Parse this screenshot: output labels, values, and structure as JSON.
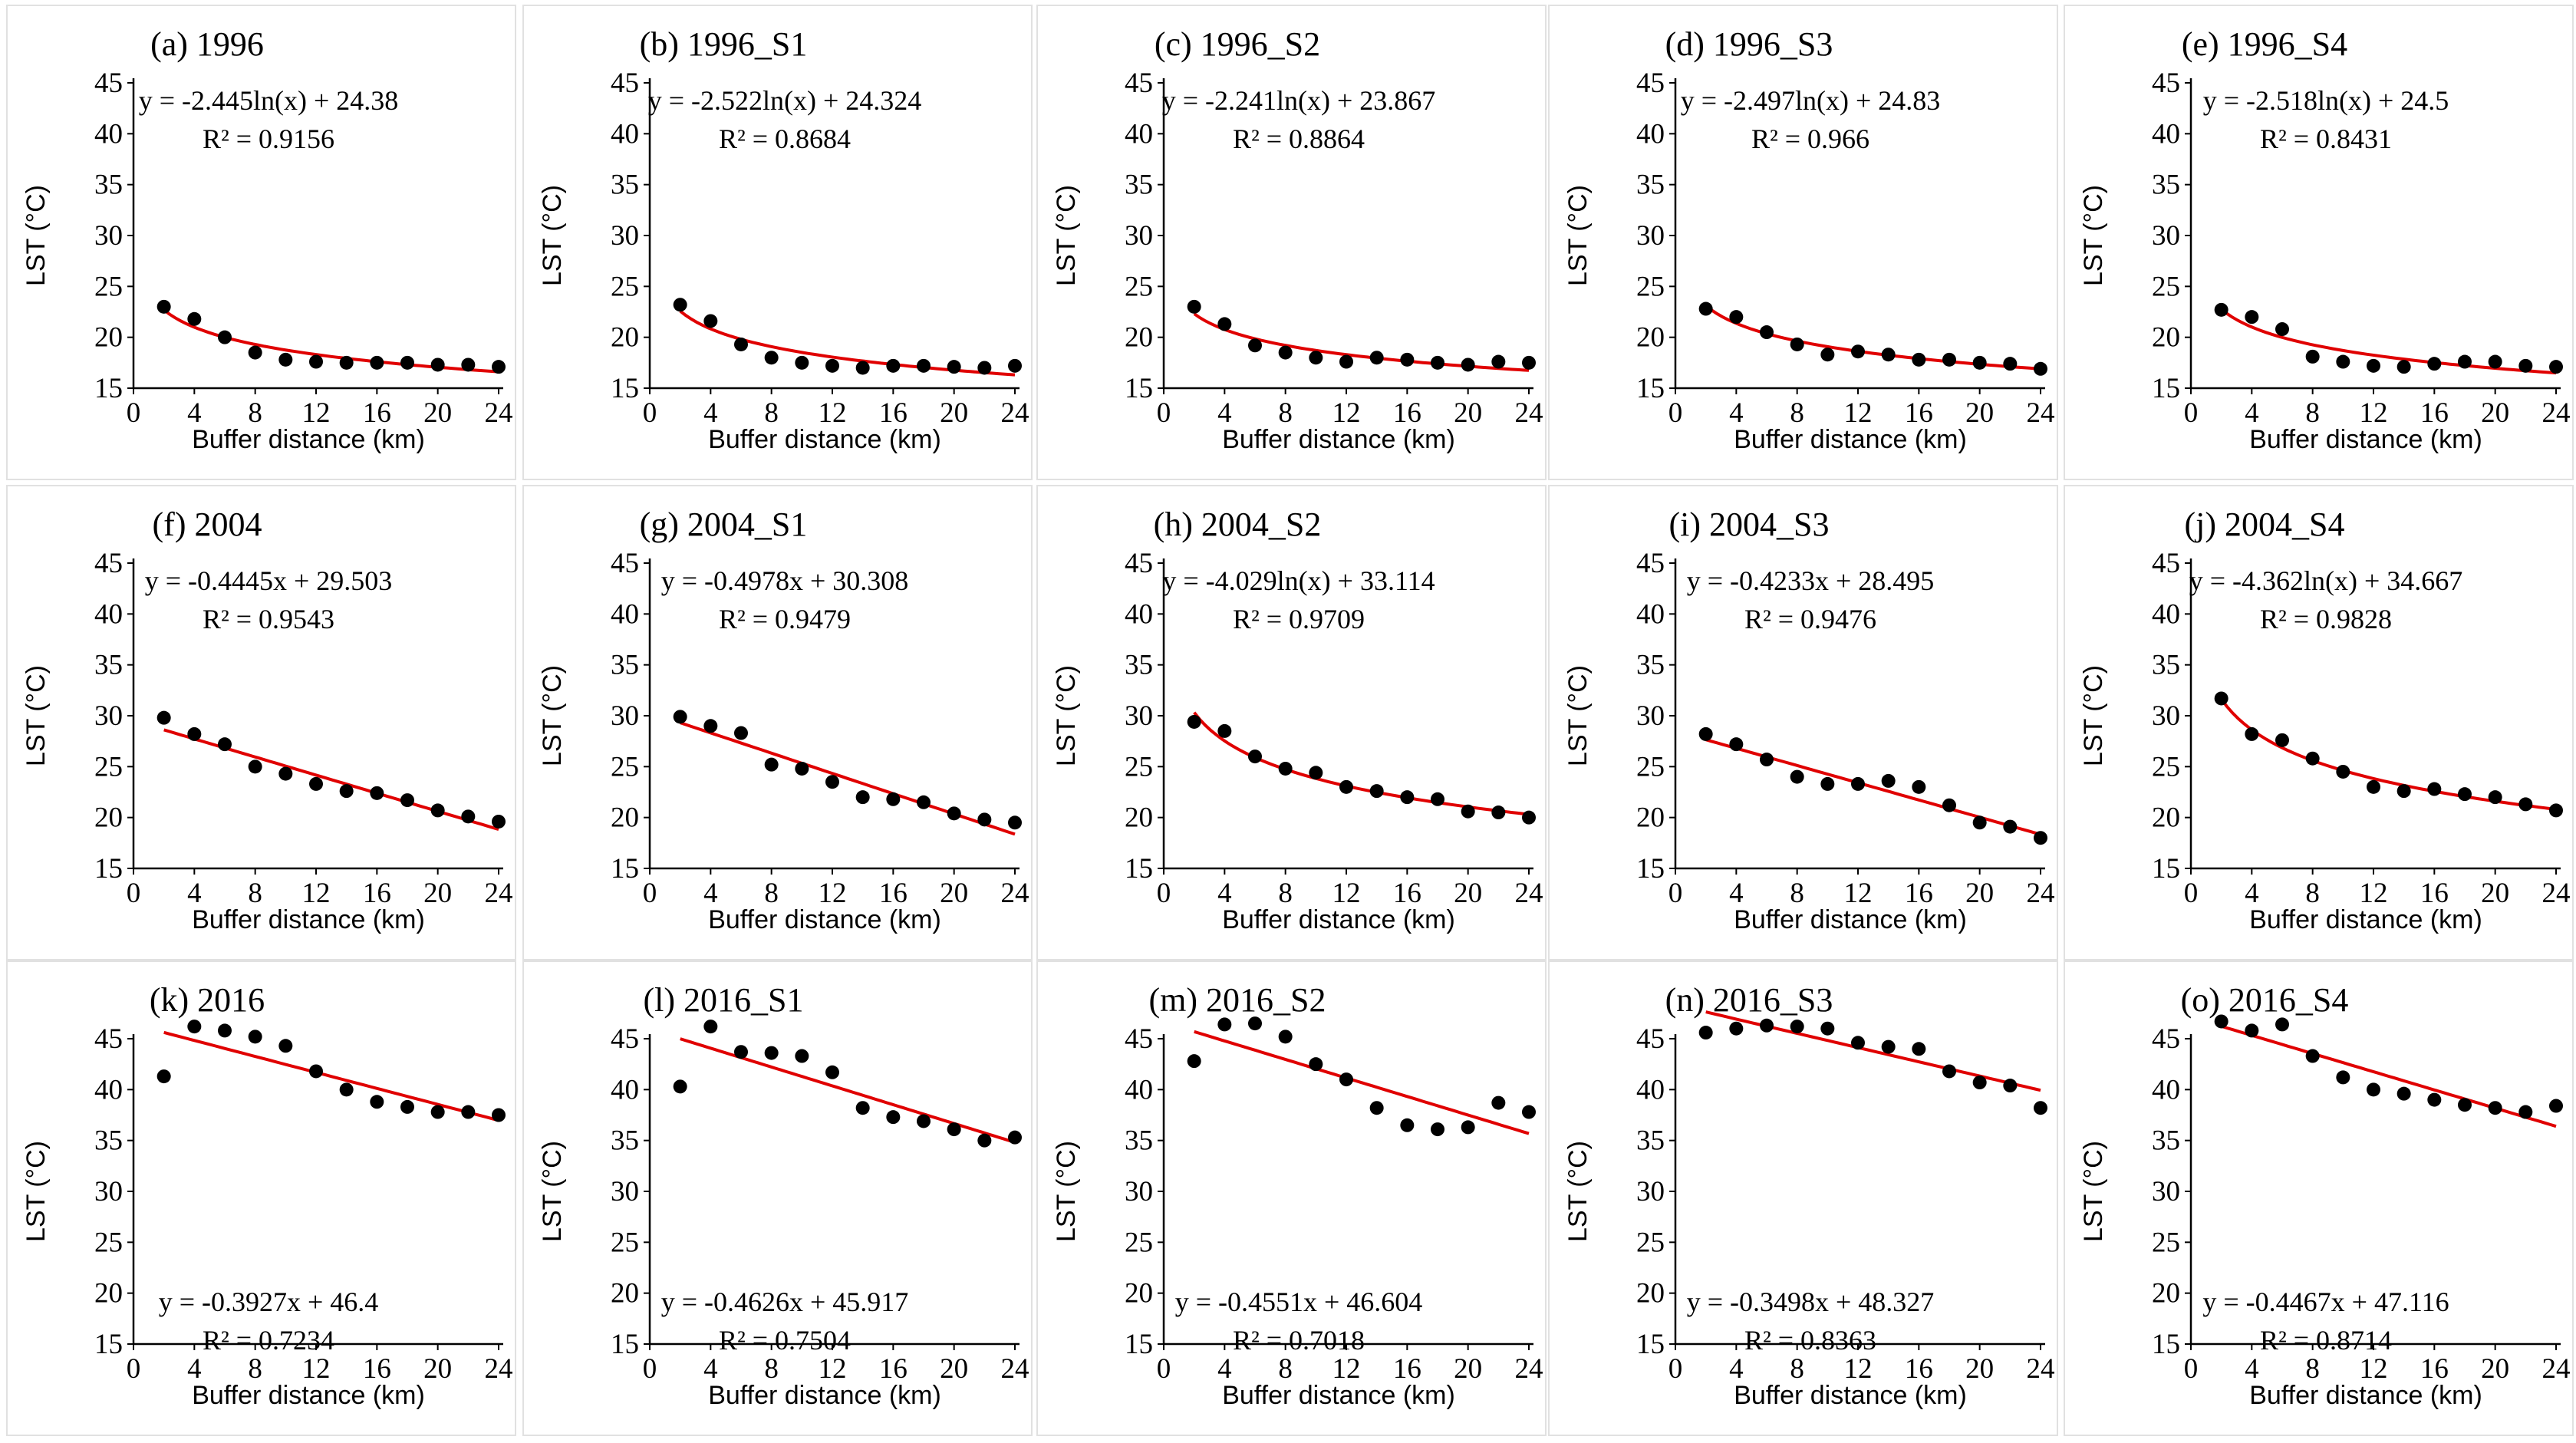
{
  "figure": {
    "xlabel": "Buffer distance (km)",
    "ylabel": "LST (°C)",
    "fit_color": "#e00000",
    "point_color": "#000000"
  },
  "chart_data": [
    {
      "type": "scatter",
      "title": "(a) 1996",
      "xlabel": "Buffer distance (km)",
      "ylabel": "LST (°C)",
      "xlim": [
        0,
        24
      ],
      "ylim": [
        15,
        45
      ],
      "xticks": [
        "0",
        "4",
        "8",
        "12",
        "16",
        "20",
        "24"
      ],
      "yticks": [
        "15",
        "20",
        "25",
        "30",
        "35",
        "40",
        "45"
      ],
      "x": [
        2,
        4,
        6,
        8,
        10,
        12,
        14,
        16,
        18,
        20,
        22,
        24
      ],
      "y": [
        23.0,
        21.8,
        20.0,
        18.5,
        17.8,
        17.6,
        17.5,
        17.5,
        17.5,
        17.3,
        17.3,
        17.1
      ],
      "fit": {
        "kind": "log",
        "a": -2.445,
        "b": 24.38
      },
      "equation": "y = -2.445ln(x) + 24.38",
      "r2": "R² = 0.9156",
      "eq_pos": "top"
    },
    {
      "type": "scatter",
      "title": "(b) 1996_S1",
      "xlabel": "Buffer distance (km)",
      "ylabel": "LST (°C)",
      "xlim": [
        0,
        24
      ],
      "ylim": [
        15,
        45
      ],
      "xticks": [
        "0",
        "4",
        "8",
        "12",
        "16",
        "20",
        "24"
      ],
      "yticks": [
        "15",
        "20",
        "25",
        "30",
        "35",
        "40",
        "45"
      ],
      "x": [
        2,
        4,
        6,
        8,
        10,
        12,
        14,
        16,
        18,
        20,
        22,
        24
      ],
      "y": [
        23.2,
        21.6,
        19.3,
        18.0,
        17.5,
        17.2,
        17.0,
        17.2,
        17.2,
        17.1,
        17.0,
        17.2
      ],
      "fit": {
        "kind": "log",
        "a": -2.522,
        "b": 24.324
      },
      "equation": "y = -2.522ln(x) + 24.324",
      "r2": "R² = 0.8684",
      "eq_pos": "top"
    },
    {
      "type": "scatter",
      "title": "(c) 1996_S2",
      "xlabel": "Buffer distance (km)",
      "ylabel": "LST (°C)",
      "xlim": [
        0,
        24
      ],
      "ylim": [
        15,
        45
      ],
      "xticks": [
        "0",
        "4",
        "8",
        "12",
        "16",
        "20",
        "24"
      ],
      "yticks": [
        "15",
        "20",
        "25",
        "30",
        "35",
        "40",
        "45"
      ],
      "x": [
        2,
        4,
        6,
        8,
        10,
        12,
        14,
        16,
        18,
        20,
        22,
        24
      ],
      "y": [
        23.0,
        21.3,
        19.2,
        18.5,
        18.0,
        17.6,
        18.0,
        17.8,
        17.5,
        17.3,
        17.6,
        17.5
      ],
      "fit": {
        "kind": "log",
        "a": -2.241,
        "b": 23.867
      },
      "equation": "y = -2.241ln(x) + 23.867",
      "r2": "R² = 0.8864",
      "eq_pos": "top"
    },
    {
      "type": "scatter",
      "title": "(d) 1996_S3",
      "xlabel": "Buffer distance (km)",
      "ylabel": "LST (°C)",
      "xlim": [
        0,
        24
      ],
      "ylim": [
        15,
        45
      ],
      "xticks": [
        "0",
        "4",
        "8",
        "12",
        "16",
        "20",
        "24"
      ],
      "yticks": [
        "15",
        "20",
        "25",
        "30",
        "35",
        "40",
        "45"
      ],
      "x": [
        2,
        4,
        6,
        8,
        10,
        12,
        14,
        16,
        18,
        20,
        22,
        24
      ],
      "y": [
        22.8,
        22.0,
        20.5,
        19.3,
        18.3,
        18.6,
        18.3,
        17.8,
        17.8,
        17.5,
        17.4,
        16.9
      ],
      "fit": {
        "kind": "log",
        "a": -2.497,
        "b": 24.83
      },
      "equation": "y = -2.497ln(x) + 24.83",
      "r2": "R² = 0.966",
      "eq_pos": "top"
    },
    {
      "type": "scatter",
      "title": "(e) 1996_S4",
      "xlabel": "Buffer distance (km)",
      "ylabel": "LST (°C)",
      "xlim": [
        0,
        24
      ],
      "ylim": [
        15,
        45
      ],
      "xticks": [
        "0",
        "4",
        "8",
        "12",
        "16",
        "20",
        "24"
      ],
      "yticks": [
        "15",
        "20",
        "25",
        "30",
        "35",
        "40",
        "45"
      ],
      "x": [
        2,
        4,
        6,
        8,
        10,
        12,
        14,
        16,
        18,
        20,
        22,
        24
      ],
      "y": [
        22.7,
        22.0,
        20.8,
        18.1,
        17.6,
        17.2,
        17.1,
        17.4,
        17.6,
        17.6,
        17.2,
        17.1
      ],
      "fit": {
        "kind": "log",
        "a": -2.518,
        "b": 24.5
      },
      "equation": "y = -2.518ln(x) + 24.5",
      "r2": "R² = 0.8431",
      "eq_pos": "top"
    },
    {
      "type": "scatter",
      "title": "(f) 2004",
      "xlabel": "Buffer distance (km)",
      "ylabel": "LST (°C)",
      "xlim": [
        0,
        24
      ],
      "ylim": [
        15,
        45
      ],
      "xticks": [
        "0",
        "4",
        "8",
        "12",
        "16",
        "20",
        "24"
      ],
      "yticks": [
        "15",
        "20",
        "25",
        "30",
        "35",
        "40",
        "45"
      ],
      "x": [
        2,
        4,
        6,
        8,
        10,
        12,
        14,
        16,
        18,
        20,
        22,
        24
      ],
      "y": [
        29.8,
        28.2,
        27.2,
        25.0,
        24.3,
        23.3,
        22.6,
        22.4,
        21.7,
        20.7,
        20.1,
        19.6
      ],
      "fit": {
        "kind": "linear",
        "a": -0.4445,
        "b": 29.503
      },
      "equation": "y = -0.4445x + 29.503",
      "r2": "R² = 0.9543",
      "eq_pos": "top"
    },
    {
      "type": "scatter",
      "title": "(g) 2004_S1",
      "xlabel": "Buffer distance (km)",
      "ylabel": "LST (°C)",
      "xlim": [
        0,
        24
      ],
      "ylim": [
        15,
        45
      ],
      "xticks": [
        "0",
        "4",
        "8",
        "12",
        "16",
        "20",
        "24"
      ],
      "yticks": [
        "15",
        "20",
        "25",
        "30",
        "35",
        "40",
        "45"
      ],
      "x": [
        2,
        4,
        6,
        8,
        10,
        12,
        14,
        16,
        18,
        20,
        22,
        24
      ],
      "y": [
        29.9,
        29.0,
        28.3,
        25.2,
        24.8,
        23.5,
        22.0,
        21.8,
        21.5,
        20.4,
        19.8,
        19.5
      ],
      "fit": {
        "kind": "linear",
        "a": -0.4978,
        "b": 30.308
      },
      "equation": "y = -0.4978x + 30.308",
      "r2": "R² = 0.9479",
      "eq_pos": "top"
    },
    {
      "type": "scatter",
      "title": "(h) 2004_S2",
      "xlabel": "Buffer distance (km)",
      "ylabel": "LST (°C)",
      "xlim": [
        0,
        24
      ],
      "ylim": [
        15,
        45
      ],
      "xticks": [
        "0",
        "4",
        "8",
        "12",
        "16",
        "20",
        "24"
      ],
      "yticks": [
        "15",
        "20",
        "25",
        "30",
        "35",
        "40",
        "45"
      ],
      "x": [
        2,
        4,
        6,
        8,
        10,
        12,
        14,
        16,
        18,
        20,
        22,
        24
      ],
      "y": [
        29.4,
        28.5,
        26.0,
        24.8,
        24.4,
        23.0,
        22.6,
        22.0,
        21.8,
        20.6,
        20.5,
        20.0
      ],
      "fit": {
        "kind": "log",
        "a": -4.029,
        "b": 33.114
      },
      "equation": "y = -4.029ln(x) + 33.114",
      "r2": "R² = 0.9709",
      "eq_pos": "top"
    },
    {
      "type": "scatter",
      "title": "(i) 2004_S3",
      "xlabel": "Buffer distance (km)",
      "ylabel": "LST (°C)",
      "xlim": [
        0,
        24
      ],
      "ylim": [
        15,
        45
      ],
      "xticks": [
        "0",
        "4",
        "8",
        "12",
        "16",
        "20",
        "24"
      ],
      "yticks": [
        "15",
        "20",
        "25",
        "30",
        "35",
        "40",
        "45"
      ],
      "x": [
        2,
        4,
        6,
        8,
        10,
        12,
        14,
        16,
        18,
        20,
        22,
        24
      ],
      "y": [
        28.2,
        27.2,
        25.7,
        24.0,
        23.3,
        23.3,
        23.6,
        23.0,
        21.2,
        19.5,
        19.1,
        18.0
      ],
      "fit": {
        "kind": "linear",
        "a": -0.4233,
        "b": 28.495
      },
      "equation": "y = -0.4233x + 28.495",
      "r2": "R² = 0.9476",
      "eq_pos": "top"
    },
    {
      "type": "scatter",
      "title": "(j) 2004_S4",
      "xlabel": "Buffer distance (km)",
      "ylabel": "LST (°C)",
      "xlim": [
        0,
        24
      ],
      "ylim": [
        15,
        45
      ],
      "xticks": [
        "0",
        "4",
        "8",
        "12",
        "16",
        "20",
        "24"
      ],
      "yticks": [
        "15",
        "20",
        "25",
        "30",
        "35",
        "40",
        "45"
      ],
      "x": [
        2,
        4,
        6,
        8,
        10,
        12,
        14,
        16,
        18,
        20,
        22,
        24
      ],
      "y": [
        31.7,
        28.2,
        27.6,
        25.8,
        24.5,
        23.0,
        22.6,
        22.8,
        22.3,
        22.0,
        21.3,
        20.7
      ],
      "fit": {
        "kind": "log",
        "a": -4.362,
        "b": 34.667
      },
      "equation": "y = -4.362ln(x) + 34.667",
      "r2": "R² = 0.9828",
      "eq_pos": "top"
    },
    {
      "type": "scatter",
      "title": "(k) 2016",
      "xlabel": "Buffer distance (km)",
      "ylabel": "LST (°C)",
      "xlim": [
        0,
        24
      ],
      "ylim": [
        15,
        45
      ],
      "xticks": [
        "0",
        "4",
        "8",
        "12",
        "16",
        "20",
        "24"
      ],
      "yticks": [
        "15",
        "20",
        "25",
        "30",
        "35",
        "40",
        "45"
      ],
      "x": [
        2,
        4,
        6,
        8,
        10,
        12,
        14,
        16,
        18,
        20,
        22,
        24
      ],
      "y": [
        41.3,
        46.2,
        45.8,
        45.2,
        44.3,
        41.8,
        40.0,
        38.8,
        38.3,
        37.8,
        37.8,
        37.5
      ],
      "fit": {
        "kind": "linear",
        "a": -0.3927,
        "b": 46.4
      },
      "equation": "y = -0.3927x + 46.4",
      "r2": "R² = 0.7234",
      "eq_pos": "bottom"
    },
    {
      "type": "scatter",
      "title": "(l) 2016_S1",
      "xlabel": "Buffer distance (km)",
      "ylabel": "LST (°C)",
      "xlim": [
        0,
        24
      ],
      "ylim": [
        15,
        45
      ],
      "xticks": [
        "0",
        "4",
        "8",
        "12",
        "16",
        "20",
        "24"
      ],
      "yticks": [
        "15",
        "20",
        "25",
        "30",
        "35",
        "40",
        "45"
      ],
      "x": [
        2,
        4,
        6,
        8,
        10,
        12,
        14,
        16,
        18,
        20,
        22,
        24
      ],
      "y": [
        40.3,
        46.2,
        43.7,
        43.6,
        43.3,
        41.7,
        38.2,
        37.3,
        36.9,
        36.1,
        35.0,
        35.3
      ],
      "fit": {
        "kind": "linear",
        "a": -0.4626,
        "b": 45.917
      },
      "equation": "y = -0.4626x + 45.917",
      "r2": "R² = 0.7504",
      "eq_pos": "bottom"
    },
    {
      "type": "scatter",
      "title": "(m) 2016_S2",
      "xlabel": "Buffer distance (km)",
      "ylabel": "LST (°C)",
      "xlim": [
        0,
        24
      ],
      "ylim": [
        15,
        45
      ],
      "xticks": [
        "0",
        "4",
        "8",
        "12",
        "16",
        "20",
        "24"
      ],
      "yticks": [
        "15",
        "20",
        "25",
        "30",
        "35",
        "40",
        "45"
      ],
      "x": [
        2,
        4,
        6,
        8,
        10,
        12,
        14,
        16,
        18,
        20,
        22,
        24
      ],
      "y": [
        42.8,
        46.4,
        46.5,
        45.2,
        42.5,
        41.0,
        38.2,
        36.5,
        36.1,
        36.3,
        38.7,
        37.8
      ],
      "fit": {
        "kind": "linear",
        "a": -0.4551,
        "b": 46.604
      },
      "equation": "y = -0.4551x + 46.604",
      "r2": "R² = 0.7018",
      "eq_pos": "bottom"
    },
    {
      "type": "scatter",
      "title": "(n) 2016_S3",
      "xlabel": "Buffer distance (km)",
      "ylabel": "LST (°C)",
      "xlim": [
        0,
        24
      ],
      "ylim": [
        15,
        45
      ],
      "xticks": [
        "0",
        "4",
        "8",
        "12",
        "16",
        "20",
        "24"
      ],
      "yticks": [
        "15",
        "20",
        "25",
        "30",
        "35",
        "40",
        "45"
      ],
      "x": [
        2,
        4,
        6,
        8,
        10,
        12,
        14,
        16,
        18,
        20,
        22,
        24
      ],
      "y": [
        45.6,
        46.0,
        46.3,
        46.2,
        46.0,
        44.6,
        44.2,
        44.0,
        41.8,
        40.7,
        40.4,
        38.2
      ],
      "fit": {
        "kind": "linear",
        "a": -0.3498,
        "b": 48.327
      },
      "equation": "y = -0.3498x + 48.327",
      "r2": "R² = 0.8363",
      "eq_pos": "bottom"
    },
    {
      "type": "scatter",
      "title": "(o) 2016_S4",
      "xlabel": "Buffer distance (km)",
      "ylabel": "LST (°C)",
      "xlim": [
        0,
        24
      ],
      "ylim": [
        15,
        45
      ],
      "xticks": [
        "0",
        "4",
        "8",
        "12",
        "16",
        "20",
        "24"
      ],
      "yticks": [
        "15",
        "20",
        "25",
        "30",
        "35",
        "40",
        "45"
      ],
      "x": [
        2,
        4,
        6,
        8,
        10,
        12,
        14,
        16,
        18,
        20,
        22,
        24
      ],
      "y": [
        46.7,
        45.8,
        46.4,
        43.3,
        41.2,
        40.0,
        39.6,
        39.0,
        38.5,
        38.2,
        37.8,
        38.4
      ],
      "fit": {
        "kind": "linear",
        "a": -0.4467,
        "b": 47.116
      },
      "equation": "y = -0.4467x + 47.116",
      "r2": "R² = 0.8714",
      "eq_pos": "bottom"
    }
  ]
}
